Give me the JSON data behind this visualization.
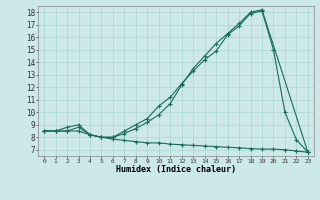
{
  "xlabel": "Humidex (Indice chaleur)",
  "bg_color": "#cce8e8",
  "line_color": "#1a6b5a",
  "grid_color": "#aad4d4",
  "xlim": [
    -0.5,
    23.5
  ],
  "ylim": [
    6.5,
    18.5
  ],
  "xticks": [
    0,
    1,
    2,
    3,
    4,
    5,
    6,
    7,
    8,
    9,
    10,
    11,
    12,
    13,
    14,
    15,
    16,
    17,
    18,
    19,
    20,
    21,
    22,
    23
  ],
  "yticks": [
    7,
    8,
    9,
    10,
    11,
    12,
    13,
    14,
    15,
    16,
    17,
    18
  ],
  "line1_x": [
    0,
    1,
    2,
    3,
    4,
    5,
    6,
    7,
    8,
    9,
    10,
    11,
    12,
    13,
    14,
    15,
    16,
    17,
    18,
    19,
    23
  ],
  "line1_y": [
    8.5,
    8.5,
    8.8,
    9.0,
    8.2,
    8.0,
    8.0,
    8.3,
    8.7,
    9.2,
    9.8,
    10.7,
    12.2,
    13.5,
    14.5,
    15.5,
    16.3,
    17.1,
    18.0,
    18.2,
    6.8
  ],
  "line2_x": [
    0,
    1,
    2,
    3,
    4,
    5,
    6,
    7,
    8,
    9,
    10,
    11,
    12,
    13,
    14,
    15,
    16,
    17,
    18,
    19,
    20,
    21,
    22,
    23
  ],
  "line2_y": [
    8.5,
    8.5,
    8.5,
    8.5,
    8.2,
    8.0,
    7.85,
    7.75,
    7.65,
    7.55,
    7.55,
    7.45,
    7.4,
    7.35,
    7.3,
    7.25,
    7.2,
    7.15,
    7.1,
    7.05,
    7.05,
    7.0,
    6.9,
    6.8
  ],
  "line3_x": [
    0,
    1,
    2,
    3,
    4,
    5,
    6,
    7,
    8,
    9,
    10,
    11,
    12,
    13,
    14,
    15,
    16,
    17,
    18,
    19,
    20,
    21,
    22,
    23
  ],
  "line3_y": [
    8.5,
    8.5,
    8.5,
    8.8,
    8.2,
    8.0,
    8.0,
    8.5,
    9.0,
    9.5,
    10.5,
    11.2,
    12.3,
    13.3,
    14.2,
    14.9,
    16.2,
    16.9,
    17.9,
    18.1,
    15.0,
    10.0,
    7.8,
    6.8
  ]
}
